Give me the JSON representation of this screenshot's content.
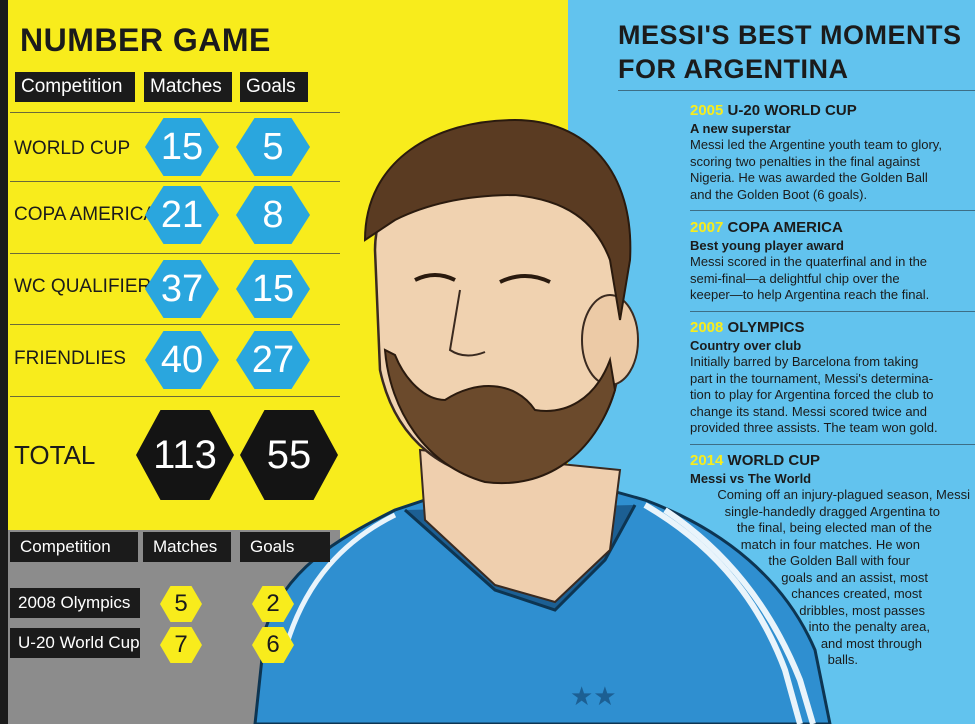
{
  "left": {
    "title": "NUMBER GAME",
    "headers": [
      "Competition",
      "Matches",
      "Goals"
    ],
    "rows": [
      {
        "label": "WORLD CUP",
        "matches": "15",
        "goals": "5"
      },
      {
        "label": "COPA AMERICA",
        "matches": "21",
        "goals": "8"
      },
      {
        "label": "WC QUALIFIERS",
        "matches": "37",
        "goals": "15"
      },
      {
        "label": "FRIENDLIES",
        "matches": "40",
        "goals": "27"
      }
    ],
    "total": {
      "label": "TOTAL",
      "matches": "113",
      "goals": "55"
    },
    "sub_headers": [
      "Competition",
      "Matches",
      "Goals"
    ],
    "sub_rows": [
      {
        "label": "2008 Olympics",
        "matches": "5",
        "goals": "2"
      },
      {
        "label": "U-20 World Cup",
        "matches": "7",
        "goals": "6"
      }
    ]
  },
  "right": {
    "title_line1": "MESSI'S BEST MOMENTS",
    "title_line2": "FOR ARGENTINA",
    "moments": [
      {
        "year": "2005",
        "event": "U-20 WORLD CUP",
        "subtitle": "A new superstar",
        "lines": [
          "Messi led the Argentine youth team to glory,",
          "scoring two penalties in the final against",
          "Nigeria. He was awarded the Golden Ball",
          "and the Golden Boot (6 goals)."
        ]
      },
      {
        "year": "2007",
        "event": "COPA AMERICA",
        "subtitle": "Best young player award",
        "lines": [
          "Messi scored in the quaterfinal and in the",
          "semi-final—a delightful chip over the",
          "keeper—to help Argentina reach the final."
        ]
      },
      {
        "year": "2008",
        "event": "OLYMPICS",
        "subtitle": "Country over club",
        "lines": [
          "Initially barred by Barcelona from taking",
          "part in the tournament, Messi's determina-",
          "tion to play for Argentina forced the club to",
          "change its stand. Messi scored twice and",
          "provided three assists. The team won gold."
        ]
      },
      {
        "year": "2014",
        "event": "WORLD CUP",
        "subtitle": "Messi vs The World",
        "lines": [
          "Coming off an injury-plagued season, Messi",
          "single-handedly dragged Argentina to",
          "the final, being elected man of the",
          "match in four matches. He won",
          "the Golden Ball with four",
          "goals and an assist, most",
          "chances created, most",
          "dribbles, most passes",
          "into the penalty area,",
          "and most through",
          "balls."
        ]
      }
    ]
  },
  "colors": {
    "yellow": "#f8ec1c",
    "blue": "#62c3ee",
    "hex_blue": "#2aa6de",
    "dark": "#1b1b1b",
    "grey": "#8c8c8c"
  }
}
